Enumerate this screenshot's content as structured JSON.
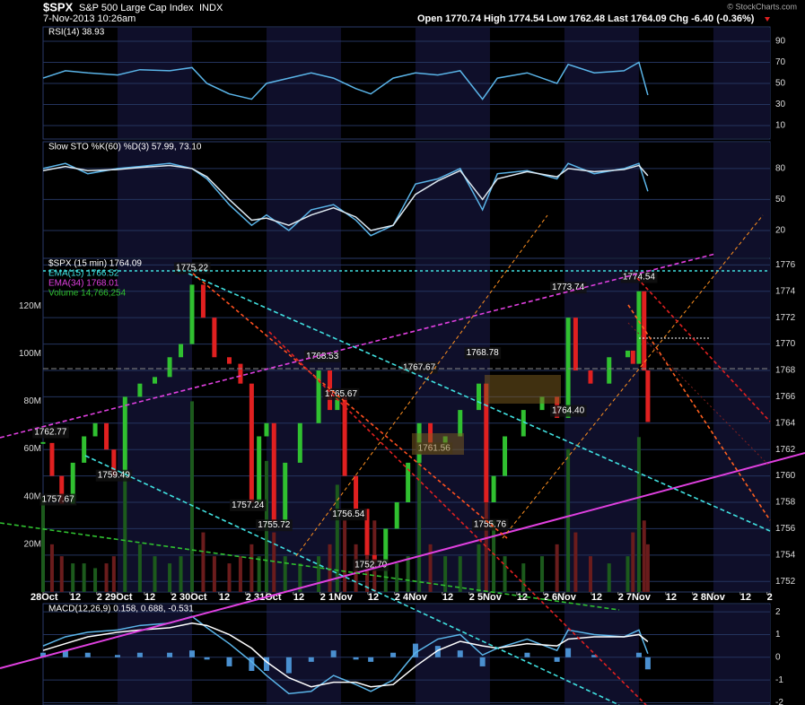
{
  "header": {
    "symbol": "$SPX",
    "name": "S&P 500 Large Cap Index",
    "exchange": "INDX",
    "date": "7-Nov-2013 10:26am",
    "quote": "Open 1770.74  High 1774.54  Low 1762.48  Last 1764.09  Chg -6.40 (-0.36%)",
    "credit": "© StockCharts.com"
  },
  "chart_data": [
    {
      "type": "line",
      "legend": [
        "RSI(14) 38.93"
      ],
      "xlim": [
        0,
        9.76
      ],
      "ylim": [
        -2.8,
        103.6
      ],
      "yticks": [
        10,
        30,
        50,
        70,
        90
      ],
      "x": [
        0,
        0.3,
        0.6,
        1,
        1.3,
        1.7,
        2.0,
        2.2,
        2.5,
        2.8,
        3.0,
        3.3,
        3.6,
        3.9,
        4.2,
        4.4,
        4.7,
        5.0,
        5.3,
        5.6,
        5.9,
        6.1,
        6.5,
        6.9,
        7.05,
        7.4,
        7.8,
        8.0,
        8.12
      ],
      "series": [
        {
          "color": "#5ab4e8",
          "values": [
            55,
            62,
            60,
            58,
            63,
            62,
            65,
            50,
            40,
            35,
            50,
            55,
            60,
            55,
            45,
            40,
            55,
            60,
            58,
            62,
            35,
            55,
            60,
            50,
            68,
            60,
            62,
            70,
            38.93
          ]
        }
      ]
    },
    {
      "type": "line",
      "legend": [
        "Slow STO %K(60) %D(3) 57.99, 73.10"
      ],
      "xlim": [
        0,
        9.76
      ],
      "ylim": [
        -7,
        106
      ],
      "yticks": [
        20,
        50,
        80
      ],
      "x": [
        0,
        0.3,
        0.6,
        1,
        1.3,
        1.7,
        2.0,
        2.2,
        2.5,
        2.8,
        3.0,
        3.3,
        3.6,
        3.9,
        4.2,
        4.4,
        4.7,
        5.0,
        5.3,
        5.6,
        5.9,
        6.1,
        6.5,
        6.9,
        7.05,
        7.4,
        7.8,
        8.0,
        8.12
      ],
      "series": [
        {
          "color": "#5ab4e8",
          "values": [
            80,
            85,
            75,
            80,
            82,
            85,
            80,
            70,
            45,
            25,
            35,
            20,
            40,
            45,
            30,
            15,
            25,
            65,
            70,
            80,
            40,
            75,
            78,
            70,
            85,
            75,
            80,
            85,
            57.99
          ]
        },
        {
          "color": "#dde8f0",
          "values": [
            78,
            82,
            78,
            79,
            81,
            83,
            80,
            72,
            50,
            30,
            32,
            25,
            35,
            42,
            33,
            20,
            25,
            55,
            68,
            78,
            50,
            70,
            77,
            72,
            80,
            77,
            79,
            83,
            73.1
          ]
        }
      ]
    },
    {
      "type": "candlestick",
      "legend": [
        "$SPX (15 min) 1764.09",
        "EMA(15) 1766.52",
        "EMA(34) 1768.01",
        "Volume 14,766,254"
      ],
      "legend_colors": [
        "#ffffff",
        "#40e0e0",
        "#e040e0",
        "#30c030"
      ],
      "xlim": [
        0,
        9.76
      ],
      "ylim": [
        1751.2,
        1776.5
      ],
      "yticks": [
        1752,
        1754,
        1756,
        1758,
        1760,
        1762,
        1764,
        1766,
        1768,
        1770,
        1772,
        1774,
        1776
      ],
      "xticks": [
        {
          "value": 0,
          "label": "28Oct"
        },
        {
          "value": 0.36,
          "label": "12"
        },
        {
          "value": 0.72,
          "label": "2"
        },
        {
          "value": 1,
          "label": "29Oct"
        },
        {
          "value": 1.36,
          "label": "12"
        },
        {
          "value": 1.72,
          "label": "2"
        },
        {
          "value": 2,
          "label": "30Oct"
        },
        {
          "value": 2.36,
          "label": "12"
        },
        {
          "value": 2.72,
          "label": "2"
        },
        {
          "value": 3,
          "label": "31Oct"
        },
        {
          "value": 3.36,
          "label": "12"
        },
        {
          "value": 3.72,
          "label": "2"
        },
        {
          "value": 4,
          "label": "1Nov"
        },
        {
          "value": 4.36,
          "label": "12"
        },
        {
          "value": 4.72,
          "label": "2"
        },
        {
          "value": 5,
          "label": "4Nov"
        },
        {
          "value": 5.36,
          "label": "12"
        },
        {
          "value": 5.72,
          "label": "2"
        },
        {
          "value": 6,
          "label": "5Nov"
        },
        {
          "value": 6.36,
          "label": "12"
        },
        {
          "value": 6.72,
          "label": "2"
        },
        {
          "value": 7,
          "label": "6Nov"
        },
        {
          "value": 7.36,
          "label": "12"
        },
        {
          "value": 7.72,
          "label": "2"
        },
        {
          "value": 8,
          "label": "7Nov"
        },
        {
          "value": 8.36,
          "label": "12"
        },
        {
          "value": 8.72,
          "label": "2"
        },
        {
          "value": 9,
          "label": "8Nov"
        },
        {
          "value": 9.36,
          "label": "12"
        },
        {
          "value": 9.72,
          "label": "2"
        }
      ],
      "x": [
        0,
        0.12,
        0.25,
        0.4,
        0.55,
        0.7,
        0.85,
        0.95,
        1.1,
        1.3,
        1.5,
        1.7,
        1.85,
        2.0,
        2.15,
        2.3,
        2.5,
        2.65,
        2.8,
        2.9,
        3.0,
        3.1,
        3.25,
        3.45,
        3.7,
        3.85,
        3.95,
        4.05,
        4.2,
        4.35,
        4.45,
        4.6,
        4.75,
        4.9,
        5.05,
        5.2,
        5.4,
        5.6,
        5.85,
        5.95,
        6.05,
        6.2,
        6.45,
        6.7,
        6.9,
        7.05,
        7.15,
        7.35,
        7.6,
        7.85,
        7.92,
        8.0,
        8.07,
        8.12
      ],
      "close": [
        1762.5,
        1760,
        1757.9,
        1761,
        1763,
        1764,
        1762,
        1760,
        1766,
        1767,
        1767.5,
        1769,
        1770,
        1774.5,
        1772,
        1769,
        1768.5,
        1767,
        1758,
        1763,
        1764,
        1756.5,
        1761,
        1764,
        1768,
        1765,
        1766,
        1760,
        1757.5,
        1754,
        1753.5,
        1756,
        1758,
        1761,
        1764,
        1762,
        1763,
        1765,
        1767,
        1758,
        1760,
        1763,
        1765,
        1766,
        1764.4,
        1772,
        1768,
        1767,
        1769,
        1769.5,
        1768.5,
        1774,
        1768,
        1764.09
      ],
      "volume": [
        40,
        20,
        15,
        12,
        12,
        10,
        12,
        15,
        70,
        20,
        15,
        12,
        15,
        80,
        25,
        15,
        12,
        15,
        20,
        15,
        55,
        25,
        15,
        12,
        15,
        20,
        45,
        30,
        20,
        25,
        30,
        15,
        12,
        15,
        60,
        20,
        15,
        15,
        20,
        70,
        30,
        15,
        12,
        15,
        20,
        60,
        25,
        15,
        12,
        15,
        25,
        65,
        30,
        20
      ],
      "vlim": [
        0,
        140
      ],
      "vticks": [
        {
          "value": 20,
          "label": "20M"
        },
        {
          "value": 40,
          "label": "40M"
        },
        {
          "value": 60,
          "label": "60M"
        },
        {
          "value": 80,
          "label": "80M"
        },
        {
          "value": 100,
          "label": "100M"
        },
        {
          "value": 120,
          "label": "120M"
        }
      ],
      "annotations": [
        {
          "x": 2.0,
          "value": 1775.22,
          "label": "1775.22"
        },
        {
          "x": 0.1,
          "value": 1762.77,
          "label": "1762.77"
        },
        {
          "x": 0.2,
          "value": 1757.67,
          "label": "1757.67"
        },
        {
          "x": 0.95,
          "value": 1759.49,
          "label": "1759.49"
        },
        {
          "x": 2.75,
          "value": 1757.24,
          "label": "1757.24"
        },
        {
          "x": 3.1,
          "value": 1755.72,
          "label": "1755.72"
        },
        {
          "x": 3.75,
          "value": 1768.53,
          "label": "1768.53"
        },
        {
          "x": 4.0,
          "value": 1765.67,
          "label": "1765.67"
        },
        {
          "x": 4.1,
          "value": 1756.54,
          "label": "1756.54"
        },
        {
          "x": 4.4,
          "value": 1752.7,
          "label": "1752.70"
        },
        {
          "x": 5.05,
          "value": 1767.67,
          "label": "1767.67"
        },
        {
          "x": 5.25,
          "value": 1761.56,
          "label": "1761.56"
        },
        {
          "x": 5.9,
          "value": 1768.78,
          "label": "1768.78"
        },
        {
          "x": 6.0,
          "value": 1755.76,
          "label": "1755.76"
        },
        {
          "x": 7.05,
          "value": 1764.4,
          "label": "1764.40"
        },
        {
          "x": 7.05,
          "value": 1773.74,
          "label": "1773.74"
        },
        {
          "x": 8.0,
          "value": 1774.54,
          "label": "1774.54"
        }
      ]
    },
    {
      "type": "macd",
      "legend": [
        "MACD(12,26,9) 0.158, 0.688, -0.531"
      ],
      "xlim": [
        0,
        9.76
      ],
      "ylim": [
        -2.1,
        2.36
      ],
      "yticks": [
        -2,
        -1,
        0,
        1,
        2
      ],
      "x": [
        0,
        0.3,
        0.6,
        1,
        1.3,
        1.7,
        2.0,
        2.2,
        2.5,
        2.8,
        3.0,
        3.3,
        3.6,
        3.9,
        4.2,
        4.4,
        4.7,
        5.0,
        5.3,
        5.6,
        5.9,
        6.1,
        6.5,
        6.9,
        7.05,
        7.4,
        7.8,
        8.0,
        8.12
      ],
      "series": [
        {
          "color": "#5ab4e8",
          "values": [
            0.5,
            0.9,
            1.1,
            1.2,
            1.4,
            1.5,
            1.8,
            1.3,
            0.6,
            -0.2,
            -0.8,
            -1.6,
            -1.5,
            -0.8,
            -1.2,
            -1.5,
            -1.0,
            0.2,
            0.8,
            1.0,
            0.1,
            0.4,
            0.8,
            0.3,
            1.2,
            1.0,
            0.9,
            1.2,
            0.158
          ]
        },
        {
          "color": "#ffffff",
          "values": [
            0.3,
            0.6,
            0.9,
            1.1,
            1.2,
            1.3,
            1.5,
            1.4,
            1.0,
            0.4,
            -0.2,
            -0.9,
            -1.3,
            -1.1,
            -1.1,
            -1.3,
            -1.2,
            -0.4,
            0.3,
            0.7,
            0.5,
            0.4,
            0.6,
            0.5,
            0.8,
            0.9,
            0.9,
            1.0,
            0.688
          ]
        }
      ],
      "histogram": {
        "color": "#4a90d0",
        "values": [
          0.2,
          0.3,
          0.2,
          0.1,
          0.2,
          0.2,
          0.3,
          -0.1,
          -0.4,
          -0.6,
          -0.6,
          -0.7,
          -0.2,
          0.3,
          -0.1,
          -0.2,
          0.2,
          0.6,
          0.5,
          0.3,
          -0.4,
          0,
          0.2,
          -0.2,
          0.4,
          0.1,
          0,
          0.2,
          -0.531
        ]
      }
    }
  ]
}
